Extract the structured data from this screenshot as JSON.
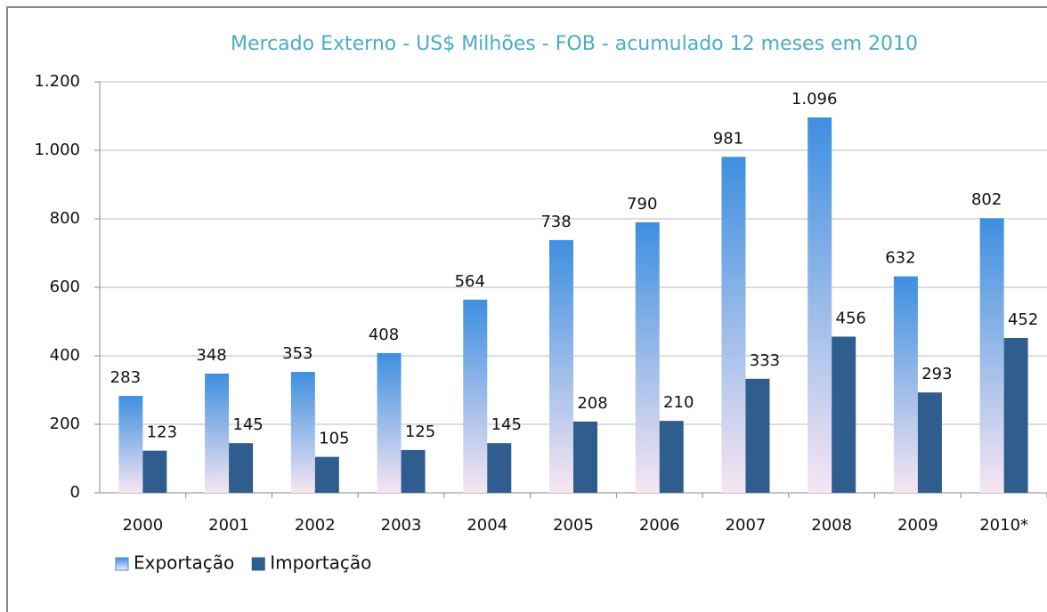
{
  "chart_data": {
    "type": "bar",
    "title": "Mercado Externo - US$ Milhões - FOB - acumulado 12 meses em 2010",
    "categories": [
      "2000",
      "2001",
      "2002",
      "2003",
      "2004",
      "2005",
      "2006",
      "2007",
      "2008",
      "2009",
      "2010*"
    ],
    "series": [
      {
        "name": "Exportação",
        "color": "#3d8fe0",
        "values": [
          283,
          348,
          353,
          408,
          564,
          738,
          790,
          981,
          1096,
          632,
          802
        ],
        "value_labels": [
          "283",
          "348",
          "353",
          "408",
          "564",
          "738",
          "790",
          "981",
          "1.096",
          "632",
          "802"
        ]
      },
      {
        "name": "Importação",
        "color": "#2f5d8e",
        "values": [
          123,
          145,
          105,
          125,
          145,
          208,
          210,
          333,
          456,
          293,
          452
        ]
      }
    ],
    "ylim": [
      0,
      1200
    ],
    "yticks": [
      0,
      200,
      400,
      600,
      800,
      {
        "value": 1000,
        "label": "1.000"
      },
      {
        "value": 1200,
        "label": "1.200"
      }
    ],
    "grid": true,
    "legend": "bottom-left"
  }
}
